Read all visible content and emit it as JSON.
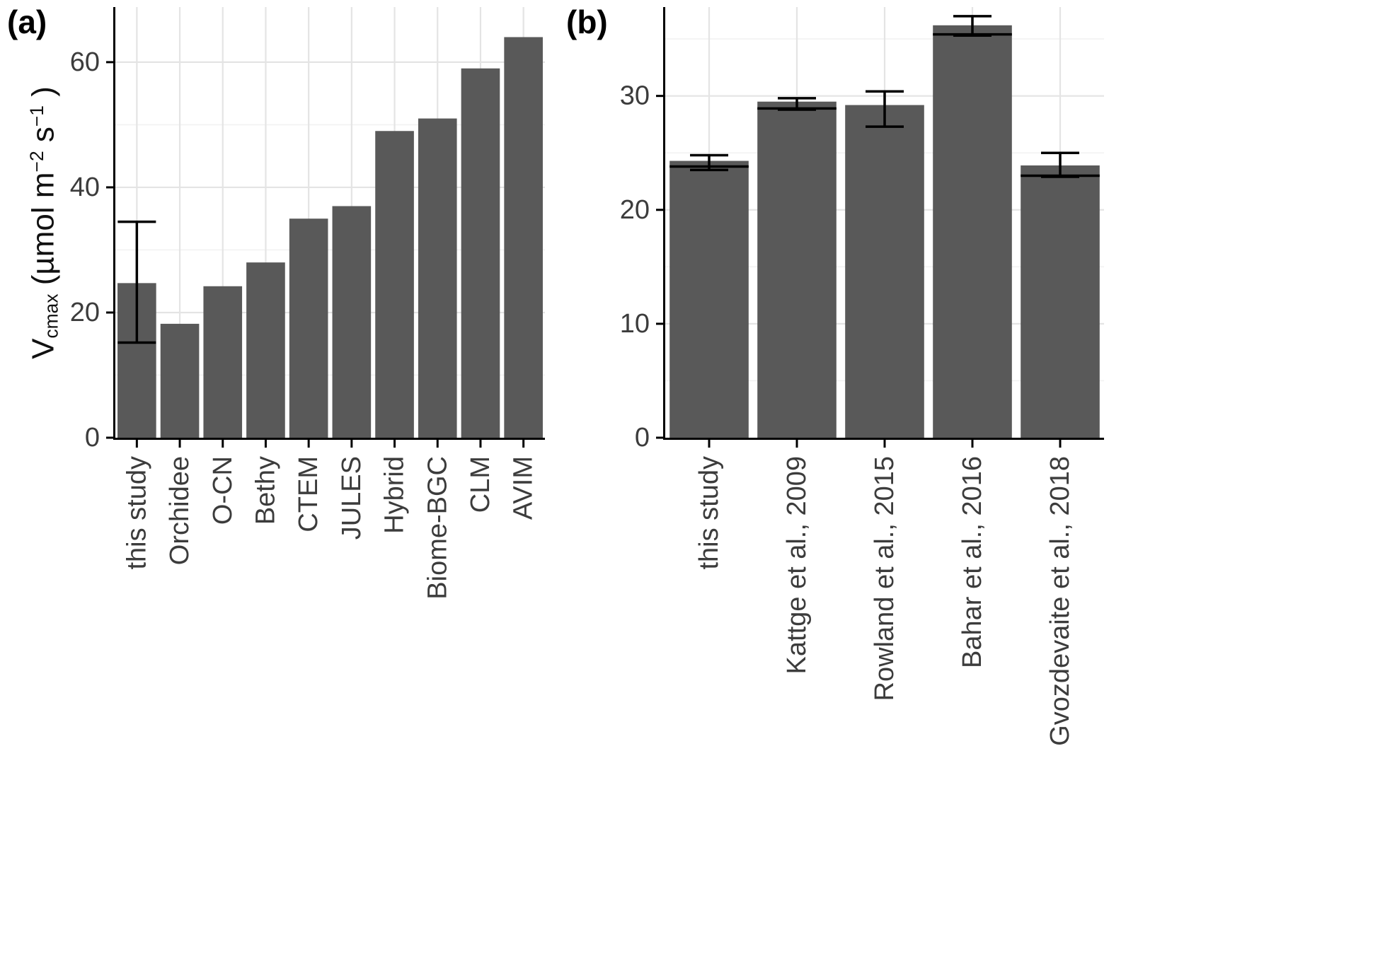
{
  "figure": {
    "ylabel": {
      "v": "V",
      "sub": "cmax",
      "mid1": " (µmol m",
      "sup1": "−2",
      "mid2": " s",
      "sup2": "−1",
      "end": " )"
    }
  },
  "style": {
    "background": "#ffffff",
    "bar_fill": "#595959",
    "axis_color": "#000000",
    "grid_major": "#e4e4e4",
    "grid_minor": "#f2f2f2",
    "text_color": "#3c3c3c",
    "error_bar_color": "#000000"
  },
  "chart_data": [
    {
      "id": "a",
      "type": "bar",
      "panel_label": "(a)",
      "title": "",
      "ylabel": "Vcmax (µmol m−2 s−1)",
      "xlabel": "",
      "categories": [
        "this study",
        "Orchidee",
        "O-CN",
        "Bethy",
        "CTEM",
        "JULES",
        "Hybrid",
        "Biome-BGC",
        "CLM",
        "AVIM"
      ],
      "values": [
        24.7,
        18.2,
        24.2,
        28,
        35,
        37,
        49,
        51,
        59,
        64
      ],
      "error_low": [
        15.2,
        null,
        null,
        null,
        null,
        null,
        null,
        null,
        null,
        null
      ],
      "error_high": [
        34.5,
        null,
        null,
        null,
        null,
        null,
        null,
        null,
        null,
        null
      ],
      "inner_lines": [
        null,
        null,
        null,
        null,
        null,
        null,
        null,
        null,
        null,
        null
      ],
      "yticks": [
        0,
        20,
        40,
        60
      ],
      "yticks_minor": [
        10,
        30,
        50
      ],
      "ylim": [
        0,
        68.8
      ],
      "grid": true,
      "legend": "none"
    },
    {
      "id": "b",
      "type": "bar",
      "panel_label": "(b)",
      "title": "",
      "ylabel": "",
      "xlabel": "",
      "categories": [
        "this study",
        "Kattge et al., 2009",
        "Rowland et al., 2015",
        "Bahar et al., 2016",
        "Gvozdevaite et al., 2018"
      ],
      "values": [
        24.3,
        29.5,
        29.2,
        36.2,
        23.9
      ],
      "error_low": [
        23.5,
        28.8,
        27.3,
        35.3,
        22.9
      ],
      "error_high": [
        24.8,
        29.8,
        30.4,
        37.0,
        25.0
      ],
      "inner_lines": [
        23.8,
        28.9,
        null,
        35.4,
        23.0
      ],
      "yticks": [
        0,
        10,
        20,
        30
      ],
      "yticks_minor": [
        5,
        15,
        25,
        35
      ],
      "ylim": [
        0,
        37.8
      ],
      "grid": true,
      "legend": "none"
    }
  ]
}
